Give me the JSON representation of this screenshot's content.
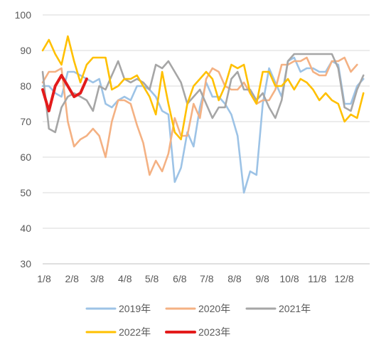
{
  "chart_data": {
    "type": "line",
    "ylim": [
      30,
      100
    ],
    "yticks": [
      30,
      40,
      50,
      60,
      70,
      80,
      90,
      100
    ],
    "xlim": [
      0,
      52
    ],
    "xticks": [
      {
        "label": "1/8",
        "week": 0
      },
      {
        "label": "2/8",
        "week": 4.43
      },
      {
        "label": "3/8",
        "week": 8.43
      },
      {
        "label": "4/8",
        "week": 12.86
      },
      {
        "label": "5/8",
        "week": 17.14
      },
      {
        "label": "6/8",
        "week": 21.57
      },
      {
        "label": "7/8",
        "week": 25.86
      },
      {
        "label": "8/8",
        "week": 30.29
      },
      {
        "label": "9/8",
        "week": 34.71
      },
      {
        "label": "10/8",
        "week": 39
      },
      {
        "label": "11/8",
        "week": 43.43
      },
      {
        "label": "12/8",
        "week": 47.71
      }
    ],
    "grid": "horizontal",
    "legend_position": "bottom",
    "series": [
      {
        "name": "2019年",
        "color": "#9dc3e6",
        "points": [
          [
            0,
            80
          ],
          [
            1,
            80
          ],
          [
            2,
            78
          ],
          [
            3,
            77
          ],
          [
            4,
            84
          ],
          [
            5,
            84
          ],
          [
            6,
            83
          ],
          [
            7,
            82
          ],
          [
            8,
            81
          ],
          [
            9,
            82
          ],
          [
            10,
            75
          ],
          [
            11,
            74
          ],
          [
            12,
            76
          ],
          [
            13,
            77
          ],
          [
            14,
            76
          ],
          [
            15,
            80
          ],
          [
            16,
            80
          ],
          [
            17,
            79
          ],
          [
            18,
            77
          ],
          [
            19,
            73
          ],
          [
            20,
            72
          ],
          [
            21,
            53
          ],
          [
            22,
            57
          ],
          [
            23,
            67
          ],
          [
            24,
            63
          ],
          [
            25,
            74
          ],
          [
            26,
            81
          ],
          [
            27,
            77
          ],
          [
            28,
            77
          ],
          [
            29,
            75
          ],
          [
            30,
            72
          ],
          [
            31,
            66
          ],
          [
            32,
            50
          ],
          [
            33,
            56
          ],
          [
            34,
            55
          ],
          [
            35,
            75
          ],
          [
            36,
            85
          ],
          [
            37,
            81
          ],
          [
            38,
            77
          ],
          [
            39,
            87
          ],
          [
            40,
            88
          ],
          [
            41,
            84
          ],
          [
            42,
            85
          ],
          [
            43,
            85
          ],
          [
            44,
            84
          ],
          [
            45,
            84
          ],
          [
            46,
            87
          ],
          [
            47,
            86
          ],
          [
            48,
            75
          ],
          [
            49,
            75
          ],
          [
            50,
            80
          ],
          [
            51,
            82
          ]
        ]
      },
      {
        "name": "2020年",
        "color": "#f4b183",
        "points": [
          [
            0,
            81
          ],
          [
            1,
            84
          ],
          [
            2,
            84
          ],
          [
            3,
            85
          ],
          [
            4,
            70
          ],
          [
            5,
            63
          ],
          [
            6,
            65
          ],
          [
            7,
            66
          ],
          [
            8,
            68
          ],
          [
            9,
            66
          ],
          [
            10,
            60
          ],
          [
            11,
            70
          ],
          [
            12,
            76
          ],
          [
            13,
            76
          ],
          [
            14,
            75
          ],
          [
            15,
            69
          ],
          [
            16,
            64
          ],
          [
            17,
            55
          ],
          [
            18,
            59
          ],
          [
            19,
            56
          ],
          [
            20,
            61
          ],
          [
            21,
            71
          ],
          [
            22,
            66
          ],
          [
            23,
            66
          ],
          [
            24,
            75
          ],
          [
            25,
            71
          ],
          [
            26,
            82
          ],
          [
            27,
            85
          ],
          [
            28,
            84
          ],
          [
            29,
            80
          ],
          [
            30,
            79
          ],
          [
            31,
            79
          ],
          [
            32,
            81
          ],
          [
            33,
            78
          ],
          [
            34,
            75
          ],
          [
            35,
            76
          ],
          [
            36,
            76
          ],
          [
            37,
            79
          ],
          [
            38,
            86
          ],
          [
            39,
            86
          ],
          [
            40,
            87
          ],
          [
            41,
            87
          ],
          [
            42,
            88
          ],
          [
            43,
            84
          ],
          [
            44,
            83
          ],
          [
            45,
            83
          ],
          [
            46,
            87
          ],
          [
            47,
            87
          ],
          [
            48,
            88
          ],
          [
            49,
            84
          ],
          [
            50,
            86
          ]
        ]
      },
      {
        "name": "2021年",
        "color": "#a6a6a6",
        "points": [
          [
            0,
            84
          ],
          [
            1,
            68
          ],
          [
            2,
            67
          ],
          [
            3,
            74
          ],
          [
            4,
            77
          ],
          [
            5,
            78
          ],
          [
            6,
            77
          ],
          [
            7,
            76
          ],
          [
            8,
            73
          ],
          [
            9,
            80
          ],
          [
            10,
            79
          ],
          [
            11,
            83
          ],
          [
            12,
            87
          ],
          [
            13,
            82
          ],
          [
            14,
            81
          ],
          [
            15,
            82
          ],
          [
            16,
            81
          ],
          [
            17,
            79
          ],
          [
            18,
            86
          ],
          [
            19,
            85
          ],
          [
            20,
            87
          ],
          [
            21,
            84
          ],
          [
            22,
            81
          ],
          [
            23,
            75
          ],
          [
            24,
            77
          ],
          [
            25,
            79
          ],
          [
            26,
            75
          ],
          [
            27,
            71
          ],
          [
            28,
            74
          ],
          [
            29,
            74
          ],
          [
            30,
            82
          ],
          [
            31,
            84
          ],
          [
            32,
            79
          ],
          [
            33,
            79
          ],
          [
            34,
            76
          ],
          [
            35,
            78
          ],
          [
            36,
            74
          ],
          [
            37,
            71
          ],
          [
            38,
            76
          ],
          [
            39,
            87
          ],
          [
            40,
            89
          ],
          [
            41,
            89
          ],
          [
            42,
            89
          ],
          [
            43,
            89
          ],
          [
            44,
            89
          ],
          [
            45,
            89
          ],
          [
            46,
            89
          ],
          [
            47,
            85
          ],
          [
            48,
            74
          ],
          [
            49,
            73
          ],
          [
            50,
            79
          ],
          [
            51,
            83
          ]
        ]
      },
      {
        "name": "2022年",
        "color": "#ffc000",
        "points": [
          [
            0,
            90
          ],
          [
            1,
            93
          ],
          [
            2,
            89
          ],
          [
            3,
            86
          ],
          [
            4,
            94
          ],
          [
            5,
            87
          ],
          [
            6,
            81
          ],
          [
            7,
            86
          ],
          [
            8,
            88
          ],
          [
            9,
            88
          ],
          [
            10,
            88
          ],
          [
            11,
            79
          ],
          [
            12,
            80
          ],
          [
            13,
            82
          ],
          [
            14,
            82
          ],
          [
            15,
            83
          ],
          [
            16,
            80
          ],
          [
            17,
            77
          ],
          [
            18,
            72
          ],
          [
            19,
            84
          ],
          [
            20,
            75
          ],
          [
            21,
            67
          ],
          [
            22,
            65
          ],
          [
            23,
            75
          ],
          [
            24,
            80
          ],
          [
            25,
            82
          ],
          [
            26,
            84
          ],
          [
            27,
            82
          ],
          [
            28,
            76
          ],
          [
            29,
            80
          ],
          [
            30,
            86
          ],
          [
            31,
            85
          ],
          [
            32,
            86
          ],
          [
            33,
            78
          ],
          [
            34,
            75
          ],
          [
            35,
            84
          ],
          [
            36,
            84
          ],
          [
            37,
            80
          ],
          [
            38,
            80
          ],
          [
            39,
            82
          ],
          [
            40,
            79
          ],
          [
            41,
            82
          ],
          [
            42,
            81
          ],
          [
            43,
            79
          ],
          [
            44,
            76
          ],
          [
            45,
            78
          ],
          [
            46,
            76
          ],
          [
            47,
            75
          ],
          [
            48,
            70
          ],
          [
            49,
            72
          ],
          [
            50,
            71
          ],
          [
            51,
            78
          ]
        ]
      },
      {
        "name": "2023年",
        "color": "#e31b1b",
        "points": [
          [
            0,
            79
          ],
          [
            1,
            73
          ],
          [
            2,
            80
          ],
          [
            3,
            83
          ],
          [
            4,
            80
          ],
          [
            5,
            77
          ],
          [
            6,
            78
          ],
          [
            7,
            82
          ]
        ]
      }
    ]
  }
}
